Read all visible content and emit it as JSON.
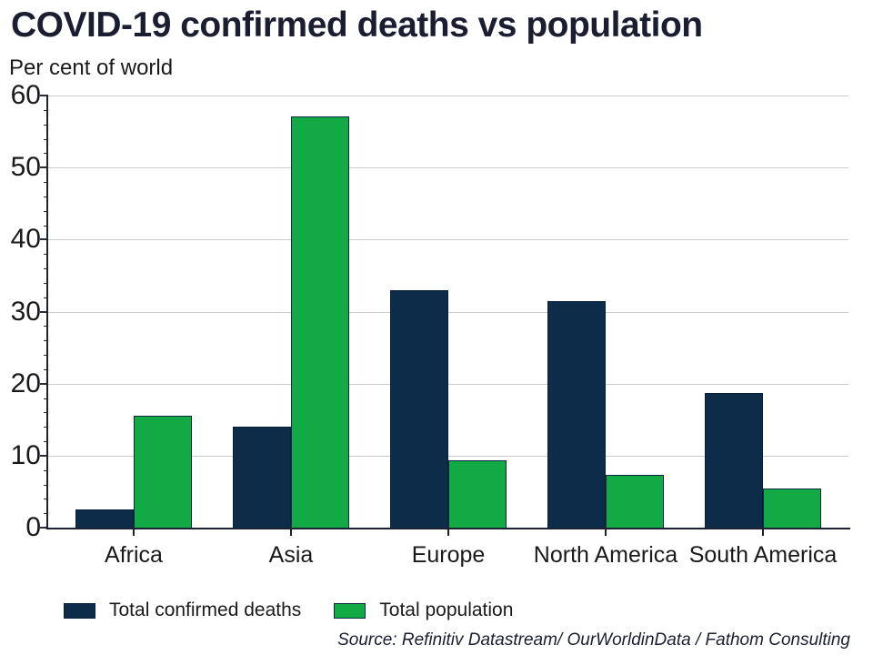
{
  "chart_data": {
    "type": "bar",
    "title": "COVID-19 confirmed deaths vs population",
    "unit_label": "Per cent of world",
    "categories": [
      "Africa",
      "Asia",
      "Europe",
      "North America",
      "South America"
    ],
    "series": [
      {
        "name": "Total confirmed deaths",
        "color": "#0d2c4a",
        "border_color": "#09203a",
        "values": [
          2.5,
          14,
          33,
          31.4,
          18.7
        ]
      },
      {
        "name": "Total population",
        "color": "#11aa45",
        "border_color": "#0c2743",
        "values": [
          15.5,
          57.1,
          9.4,
          7.3,
          5.4
        ]
      }
    ],
    "ylim": [
      0,
      60
    ],
    "yticks": [
      0,
      10,
      20,
      30,
      40,
      50,
      60
    ],
    "minor_tick_step": 2,
    "grid": "horizontal-major",
    "legend_position": "bottom-left",
    "source": "Source: Refinitiv Datastream/ OurWorldinData / Fathom Consulting",
    "colors": {
      "title": "#1b1e30",
      "text": "#1a1a1a",
      "grid": "#cbcbcb",
      "axis": "#1c2030"
    }
  }
}
